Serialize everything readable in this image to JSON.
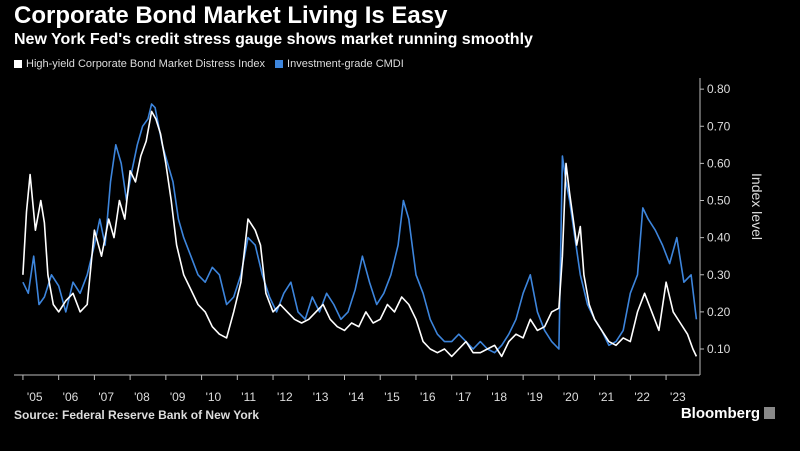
{
  "header": {
    "title": "Corporate Bond Market Living Is Easy",
    "subtitle": "New York Fed's credit stress gauge shows market running smoothly"
  },
  "legend": {
    "items": [
      {
        "label": "High-yield Corporate Bond Market Distress Index",
        "color": "#ffffff"
      },
      {
        "label": "Investment-grade CMDI",
        "color": "#3d85dc"
      }
    ]
  },
  "footer": {
    "source": "Source: Federal Reserve Bank of New York",
    "brand": "Bloomberg"
  },
  "chart_data": {
    "type": "line",
    "ylabel": "Index level",
    "ylim": [
      0.03,
      0.83
    ],
    "yticks": [
      0.1,
      0.2,
      0.3,
      0.4,
      0.5,
      0.6,
      0.7,
      0.8
    ],
    "ytick_labels": [
      "0.10",
      "0.20",
      "0.30",
      "0.40",
      "0.50",
      "0.60",
      "0.70",
      "0.80"
    ],
    "xlim": [
      2004.75,
      2023.95
    ],
    "xtick_labels": [
      "'05",
      "'06",
      "'07",
      "'08",
      "'09",
      "'10",
      "'11",
      "'12",
      "'13",
      "'14",
      "'15",
      "'16",
      "'17",
      "'18",
      "'19",
      "'20",
      "'21",
      "'22",
      "'23"
    ],
    "xticks": [
      2005,
      2006,
      2007,
      2008,
      2009,
      2010,
      2011,
      2012,
      2013,
      2014,
      2015,
      2016,
      2017,
      2018,
      2019,
      2020,
      2021,
      2022,
      2023
    ],
    "grid": false,
    "series": [
      {
        "name": "High-yield Corporate Bond Market Distress Index",
        "color": "#ffffff",
        "x": [
          2005.0,
          2005.1,
          2005.2,
          2005.35,
          2005.5,
          2005.6,
          2005.7,
          2005.85,
          2006.0,
          2006.2,
          2006.4,
          2006.6,
          2006.8,
          2007.0,
          2007.2,
          2007.4,
          2007.55,
          2007.7,
          2007.85,
          2008.0,
          2008.15,
          2008.3,
          2008.45,
          2008.6,
          2008.72,
          2008.85,
          2009.0,
          2009.15,
          2009.3,
          2009.5,
          2009.7,
          2009.9,
          2010.1,
          2010.3,
          2010.5,
          2010.7,
          2010.9,
          2011.1,
          2011.3,
          2011.5,
          2011.65,
          2011.8,
          2012.0,
          2012.2,
          2012.4,
          2012.6,
          2012.8,
          2013.0,
          2013.2,
          2013.4,
          2013.6,
          2013.8,
          2014.0,
          2014.2,
          2014.4,
          2014.6,
          2014.8,
          2015.0,
          2015.2,
          2015.4,
          2015.6,
          2015.8,
          2016.0,
          2016.2,
          2016.4,
          2016.6,
          2016.8,
          2017.0,
          2017.2,
          2017.4,
          2017.6,
          2017.8,
          2018.0,
          2018.2,
          2018.4,
          2018.6,
          2018.8,
          2019.0,
          2019.2,
          2019.4,
          2019.6,
          2019.8,
          2020.0,
          2020.1,
          2020.2,
          2020.3,
          2020.4,
          2020.5,
          2020.6,
          2020.7,
          2020.85,
          2021.0,
          2021.2,
          2021.4,
          2021.6,
          2021.8,
          2022.0,
          2022.2,
          2022.4,
          2022.6,
          2022.8,
          2023.0,
          2023.2,
          2023.4,
          2023.6,
          2023.75,
          2023.85
        ],
        "y": [
          0.3,
          0.47,
          0.57,
          0.42,
          0.5,
          0.44,
          0.3,
          0.22,
          0.2,
          0.23,
          0.25,
          0.2,
          0.22,
          0.42,
          0.35,
          0.45,
          0.4,
          0.5,
          0.45,
          0.58,
          0.55,
          0.62,
          0.66,
          0.74,
          0.72,
          0.68,
          0.6,
          0.5,
          0.38,
          0.3,
          0.26,
          0.22,
          0.2,
          0.16,
          0.14,
          0.13,
          0.2,
          0.28,
          0.45,
          0.42,
          0.38,
          0.25,
          0.2,
          0.22,
          0.2,
          0.18,
          0.17,
          0.18,
          0.2,
          0.22,
          0.18,
          0.16,
          0.15,
          0.17,
          0.16,
          0.2,
          0.17,
          0.18,
          0.22,
          0.2,
          0.24,
          0.22,
          0.18,
          0.12,
          0.1,
          0.09,
          0.1,
          0.08,
          0.1,
          0.12,
          0.09,
          0.09,
          0.1,
          0.11,
          0.08,
          0.12,
          0.14,
          0.13,
          0.18,
          0.15,
          0.16,
          0.2,
          0.21,
          0.35,
          0.6,
          0.52,
          0.45,
          0.38,
          0.43,
          0.3,
          0.22,
          0.18,
          0.15,
          0.12,
          0.11,
          0.13,
          0.12,
          0.2,
          0.25,
          0.2,
          0.15,
          0.28,
          0.2,
          0.17,
          0.14,
          0.1,
          0.08
        ]
      },
      {
        "name": "Investment-grade CMDI",
        "color": "#3d85dc",
        "x": [
          2005.0,
          2005.15,
          2005.3,
          2005.45,
          2005.6,
          2005.8,
          2006.0,
          2006.2,
          2006.4,
          2006.6,
          2006.8,
          2007.0,
          2007.15,
          2007.3,
          2007.45,
          2007.6,
          2007.75,
          2007.9,
          2008.05,
          2008.2,
          2008.35,
          2008.5,
          2008.6,
          2008.7,
          2008.8,
          2008.9,
          2009.05,
          2009.2,
          2009.35,
          2009.5,
          2009.7,
          2009.9,
          2010.1,
          2010.3,
          2010.5,
          2010.7,
          2010.9,
          2011.1,
          2011.3,
          2011.5,
          2011.7,
          2011.9,
          2012.1,
          2012.3,
          2012.5,
          2012.7,
          2012.9,
          2013.1,
          2013.3,
          2013.5,
          2013.7,
          2013.9,
          2014.1,
          2014.3,
          2014.5,
          2014.7,
          2014.9,
          2015.1,
          2015.3,
          2015.5,
          2015.65,
          2015.8,
          2016.0,
          2016.2,
          2016.4,
          2016.6,
          2016.8,
          2017.0,
          2017.2,
          2017.4,
          2017.6,
          2017.8,
          2018.0,
          2018.2,
          2018.4,
          2018.6,
          2018.8,
          2019.0,
          2019.2,
          2019.4,
          2019.6,
          2019.8,
          2020.0,
          2020.1,
          2020.2,
          2020.3,
          2020.45,
          2020.6,
          2020.8,
          2021.0,
          2021.2,
          2021.4,
          2021.6,
          2021.8,
          2022.0,
          2022.2,
          2022.35,
          2022.5,
          2022.7,
          2022.9,
          2023.1,
          2023.3,
          2023.5,
          2023.7,
          2023.85
        ],
        "y": [
          0.28,
          0.25,
          0.35,
          0.22,
          0.24,
          0.3,
          0.27,
          0.2,
          0.28,
          0.25,
          0.3,
          0.38,
          0.45,
          0.38,
          0.55,
          0.65,
          0.6,
          0.5,
          0.58,
          0.65,
          0.7,
          0.72,
          0.76,
          0.75,
          0.7,
          0.65,
          0.6,
          0.55,
          0.45,
          0.4,
          0.35,
          0.3,
          0.28,
          0.32,
          0.3,
          0.22,
          0.24,
          0.3,
          0.4,
          0.38,
          0.3,
          0.24,
          0.2,
          0.25,
          0.28,
          0.2,
          0.18,
          0.24,
          0.2,
          0.25,
          0.22,
          0.18,
          0.2,
          0.26,
          0.35,
          0.28,
          0.22,
          0.25,
          0.3,
          0.38,
          0.5,
          0.45,
          0.3,
          0.25,
          0.18,
          0.14,
          0.12,
          0.12,
          0.14,
          0.12,
          0.1,
          0.12,
          0.1,
          0.09,
          0.11,
          0.14,
          0.18,
          0.25,
          0.3,
          0.2,
          0.15,
          0.12,
          0.1,
          0.62,
          0.55,
          0.5,
          0.4,
          0.3,
          0.22,
          0.18,
          0.15,
          0.11,
          0.12,
          0.15,
          0.25,
          0.3,
          0.48,
          0.45,
          0.42,
          0.38,
          0.33,
          0.4,
          0.28,
          0.3,
          0.18
        ]
      }
    ]
  }
}
